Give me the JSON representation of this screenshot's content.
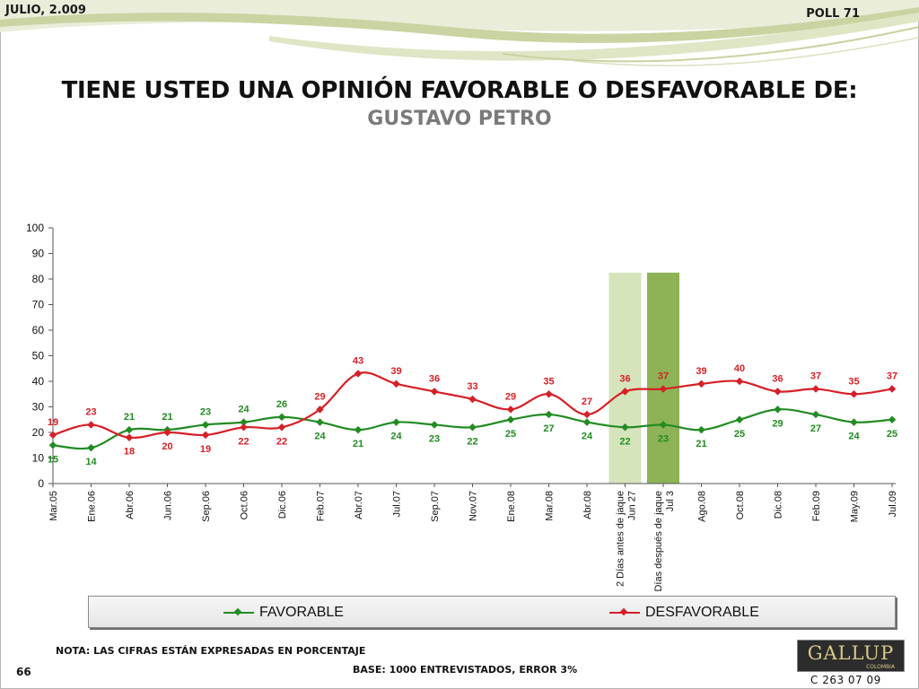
{
  "header": {
    "date": "JULIO, 2.009",
    "poll": "POLL 71"
  },
  "title": "TIENE USTED UNA OPINIÓN FAVORABLE O DESFAVORABLE DE:",
  "subtitle": "GUSTAVO PETRO",
  "colors": {
    "favorable": "#228B22",
    "desfavorable": "#D61F26",
    "band_light": "#D6E4BC",
    "band_dark": "#8DB356"
  },
  "chart_data": {
    "type": "line",
    "categories": [
      "Mar.05",
      "Ene.06",
      "Abr.06",
      "Jun.06",
      "Sep.06",
      "Oct.06",
      "Dic.06",
      "Feb.07",
      "Abr.07",
      "Jul.07",
      "Sep.07",
      "Nov.07",
      "Ene.08",
      "Mar.08",
      "Abr.08",
      "2 Días antes de jaque Jun 27",
      "2 Días después de jaque Jul 3",
      "Ago.08",
      "Oct.08",
      "Dic.08",
      "Feb.09",
      "May.09",
      "Jul.09"
    ],
    "series": [
      {
        "name": "FAVORABLE",
        "values": [
          15,
          14,
          21,
          21,
          23,
          24,
          26,
          24,
          21,
          24,
          23,
          22,
          25,
          27,
          24,
          22,
          23,
          21,
          25,
          29,
          27,
          24,
          25
        ]
      },
      {
        "name": "DESFAVORABLE",
        "values": [
          19,
          23,
          18,
          20,
          19,
          22,
          22,
          29,
          43,
          39,
          36,
          33,
          29,
          35,
          27,
          36,
          37,
          39,
          40,
          36,
          37,
          35,
          37
        ]
      }
    ],
    "ylim": [
      0,
      100
    ],
    "yticks": [
      0,
      10,
      20,
      30,
      40,
      50,
      60,
      70,
      80,
      90,
      100
    ],
    "highlight_bands": [
      15,
      16
    ],
    "legend_position": "bottom"
  },
  "legend": {
    "favorable": "FAVORABLE",
    "desfavorable": "DESFAVORABLE"
  },
  "footer": {
    "note": "NOTA: LAS CIFRAS ESTÁN EXPRESADAS EN PORCENTAJE",
    "base": "BASE: 1000 ENTREVISTADOS, ERROR 3%",
    "page": "66",
    "code": "C 263 07 09",
    "logo": "GALLUP",
    "logo_sub": "COLOMBIA"
  }
}
